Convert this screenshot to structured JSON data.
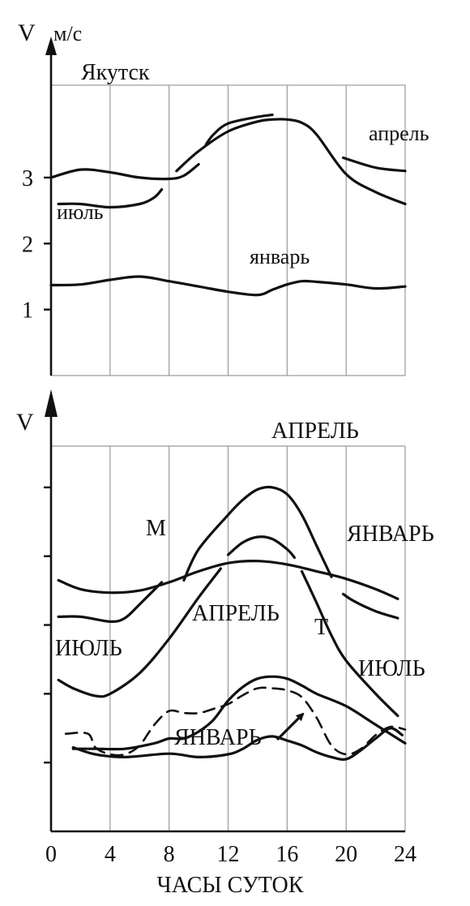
{
  "x_axis": {
    "label": "ЧАСЫ СУТОК",
    "ticks": [
      0,
      4,
      8,
      12,
      16,
      20,
      24
    ]
  },
  "chart_data": [
    {
      "type": "line",
      "title": "Якутск",
      "ylabel_v": "V",
      "ylabel_unit": "м/с",
      "xlim": [
        0,
        24
      ],
      "ylim": [
        0,
        4.4
      ],
      "yticks": [
        1,
        2,
        3
      ],
      "grid": true,
      "series": [
        {
          "name": "январь",
          "style": "solid",
          "x": [
            0,
            2,
            4,
            6,
            8,
            10,
            12,
            14,
            15,
            16,
            17,
            18,
            20,
            22,
            24
          ],
          "y": [
            1.37,
            1.38,
            1.45,
            1.5,
            1.43,
            1.35,
            1.27,
            1.22,
            1.3,
            1.38,
            1.43,
            1.42,
            1.38,
            1.32,
            1.35
          ]
        },
        {
          "name": "июль",
          "style": "solid",
          "x": [
            0.5,
            2,
            4,
            6,
            7,
            7.5
          ],
          "y": [
            2.6,
            2.6,
            2.55,
            2.6,
            2.7,
            2.82
          ]
        },
        {
          "name": "июль",
          "style": "solid",
          "x": [
            8.5,
            10,
            12,
            14,
            15,
            16,
            17,
            18,
            20,
            22,
            24
          ],
          "y": [
            3.1,
            3.4,
            3.7,
            3.85,
            3.88,
            3.88,
            3.83,
            3.65,
            3.05,
            2.78,
            2.6
          ]
        },
        {
          "name": "апрель",
          "style": "solid",
          "x": [
            0,
            2,
            4,
            6,
            8,
            9,
            10
          ],
          "y": [
            3.0,
            3.12,
            3.08,
            3.0,
            2.98,
            3.03,
            3.2
          ]
        },
        {
          "name": "апрель",
          "style": "solid",
          "x": [
            10.5,
            11,
            12,
            14,
            15
          ],
          "y": [
            3.5,
            3.65,
            3.82,
            3.92,
            3.95
          ]
        },
        {
          "name": "апрель",
          "style": "solid",
          "x": [
            19.8,
            22,
            24
          ],
          "y": [
            3.3,
            3.15,
            3.1
          ]
        }
      ],
      "annotations": [
        "Якутск",
        "апрель",
        "июль",
        "январь"
      ]
    },
    {
      "type": "line",
      "title": "",
      "ylabel_v": "V",
      "xlim": [
        0,
        24
      ],
      "ylim": [
        0,
        5.6
      ],
      "yticks": [
        1,
        2,
        3,
        4,
        5
      ],
      "grid": true,
      "series": [
        {
          "name": "ЯНВАРЬ",
          "group": "M",
          "style": "solid",
          "x": [
            0.5,
            2,
            4,
            6,
            8,
            10,
            12,
            14,
            16,
            18,
            20,
            22,
            23.5
          ],
          "y": [
            3.65,
            3.52,
            3.47,
            3.5,
            3.62,
            3.78,
            3.9,
            3.93,
            3.88,
            3.78,
            3.67,
            3.52,
            3.38
          ]
        },
        {
          "name": "АПРЕЛЬ",
          "group": "M",
          "style": "solid",
          "x": [
            0.5,
            2,
            4,
            5,
            6,
            7.5
          ],
          "y": [
            3.12,
            3.12,
            3.05,
            3.1,
            3.3,
            3.62
          ]
        },
        {
          "name": "АПРЕЛЬ",
          "group": "M",
          "style": "solid",
          "x": [
            9,
            10,
            12,
            13,
            14,
            15,
            16,
            17,
            18,
            19
          ],
          "y": [
            3.65,
            4.1,
            4.6,
            4.82,
            4.97,
            5.0,
            4.9,
            4.6,
            4.15,
            3.7
          ]
        },
        {
          "name": "АПРЕЛЬ",
          "group": "M",
          "style": "solid",
          "x": [
            19.8,
            20.5,
            22,
            23.5
          ],
          "y": [
            3.45,
            3.35,
            3.2,
            3.1
          ]
        },
        {
          "name": "ИЮЛЬ",
          "group": "M",
          "style": "solid",
          "x": [
            0.5,
            1.5,
            3,
            4,
            6,
            8,
            10,
            11.5
          ],
          "y": [
            2.2,
            2.08,
            1.97,
            2.0,
            2.3,
            2.8,
            3.4,
            3.82
          ]
        },
        {
          "name": "ИЮЛЬ",
          "group": "M",
          "style": "solid",
          "x": [
            12,
            13,
            14,
            15,
            16,
            16.5
          ],
          "y": [
            4.02,
            4.2,
            4.28,
            4.25,
            4.1,
            3.98
          ]
        },
        {
          "name": "ИЮЛЬ",
          "group": "M",
          "style": "solid",
          "x": [
            17,
            18,
            19,
            20,
            22,
            23.5
          ],
          "y": [
            3.78,
            3.32,
            2.85,
            2.48,
            2.0,
            1.68
          ]
        },
        {
          "name": "ЯНВАРЬ",
          "group": "T",
          "style": "solid",
          "x": [
            1.5,
            3,
            5,
            8,
            10,
            12,
            13,
            14,
            15,
            16,
            17,
            18,
            19,
            20,
            21,
            22,
            23,
            23.8
          ],
          "y": [
            1.22,
            1.12,
            1.08,
            1.13,
            1.08,
            1.12,
            1.2,
            1.33,
            1.38,
            1.32,
            1.25,
            1.15,
            1.08,
            1.05,
            1.18,
            1.35,
            1.5,
            1.4
          ]
        },
        {
          "name": "АПРЕЛЬ",
          "group": "T",
          "style": "solid",
          "x": [
            1.5,
            3,
            5,
            7,
            8,
            9,
            10,
            11,
            12,
            13,
            14,
            15,
            16,
            17,
            18,
            20,
            22,
            24
          ],
          "y": [
            1.2,
            1.2,
            1.2,
            1.28,
            1.35,
            1.35,
            1.45,
            1.62,
            1.9,
            2.1,
            2.22,
            2.25,
            2.22,
            2.12,
            2.0,
            1.82,
            1.55,
            1.28
          ]
        },
        {
          "name": "ИЮЛЬ",
          "group": "T",
          "style": "dashed",
          "x": [
            1,
            2.5,
            3,
            4,
            5,
            6,
            7,
            8,
            9,
            10,
            11,
            12,
            13,
            14,
            15,
            16,
            17,
            18,
            19,
            20,
            21,
            22,
            23,
            24
          ],
          "y": [
            1.42,
            1.42,
            1.22,
            1.12,
            1.12,
            1.25,
            1.55,
            1.75,
            1.72,
            1.72,
            1.78,
            1.85,
            1.98,
            2.08,
            2.08,
            2.05,
            1.95,
            1.65,
            1.25,
            1.12,
            1.2,
            1.4,
            1.52,
            1.48
          ]
        }
      ],
      "annotations": [
        "АПРЕЛЬ",
        "М",
        "ЯНВАРЬ",
        "ИЮЛЬ",
        "АПРЕЛЬ",
        "Т",
        "ИЮЛЬ",
        "ЯНВАРЬ"
      ]
    }
  ]
}
